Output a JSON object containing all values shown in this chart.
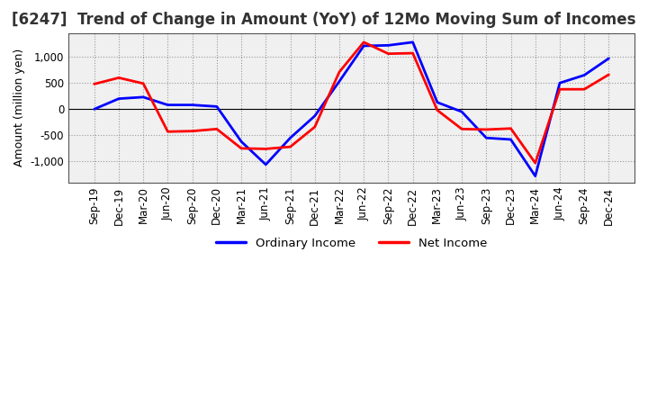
{
  "title": "[6247]  Trend of Change in Amount (YoY) of 12Mo Moving Sum of Incomes",
  "ylabel": "Amount (million yen)",
  "x_labels": [
    "Sep-19",
    "Dec-19",
    "Mar-20",
    "Jun-20",
    "Sep-20",
    "Dec-20",
    "Mar-21",
    "Jun-21",
    "Sep-21",
    "Dec-21",
    "Mar-22",
    "Jun-22",
    "Sep-22",
    "Dec-22",
    "Mar-23",
    "Jun-23",
    "Sep-23",
    "Dec-23",
    "Mar-24",
    "Jun-24",
    "Sep-24",
    "Dec-24"
  ],
  "ordinary_income": [
    0,
    200,
    230,
    80,
    80,
    50,
    -620,
    -1060,
    -550,
    -130,
    530,
    1210,
    1220,
    1280,
    130,
    -50,
    -550,
    -580,
    -1280,
    500,
    650,
    970
  ],
  "net_income": [
    480,
    600,
    490,
    -430,
    -420,
    -380,
    -750,
    -760,
    -720,
    -340,
    710,
    1280,
    1060,
    1070,
    -20,
    -380,
    -390,
    -370,
    -1030,
    380,
    380,
    660
  ],
  "ordinary_color": "#0000ff",
  "net_color": "#ff0000",
  "ylim": [
    -1400,
    1450
  ],
  "yticks": [
    -1000,
    -500,
    0,
    500,
    1000
  ],
  "bg_color": "#ffffff",
  "plot_bg_color": "#f0f0f0",
  "grid_color": "#999999",
  "line_width": 2.0,
  "title_fontsize": 12,
  "axis_fontsize": 9,
  "tick_fontsize": 8.5
}
